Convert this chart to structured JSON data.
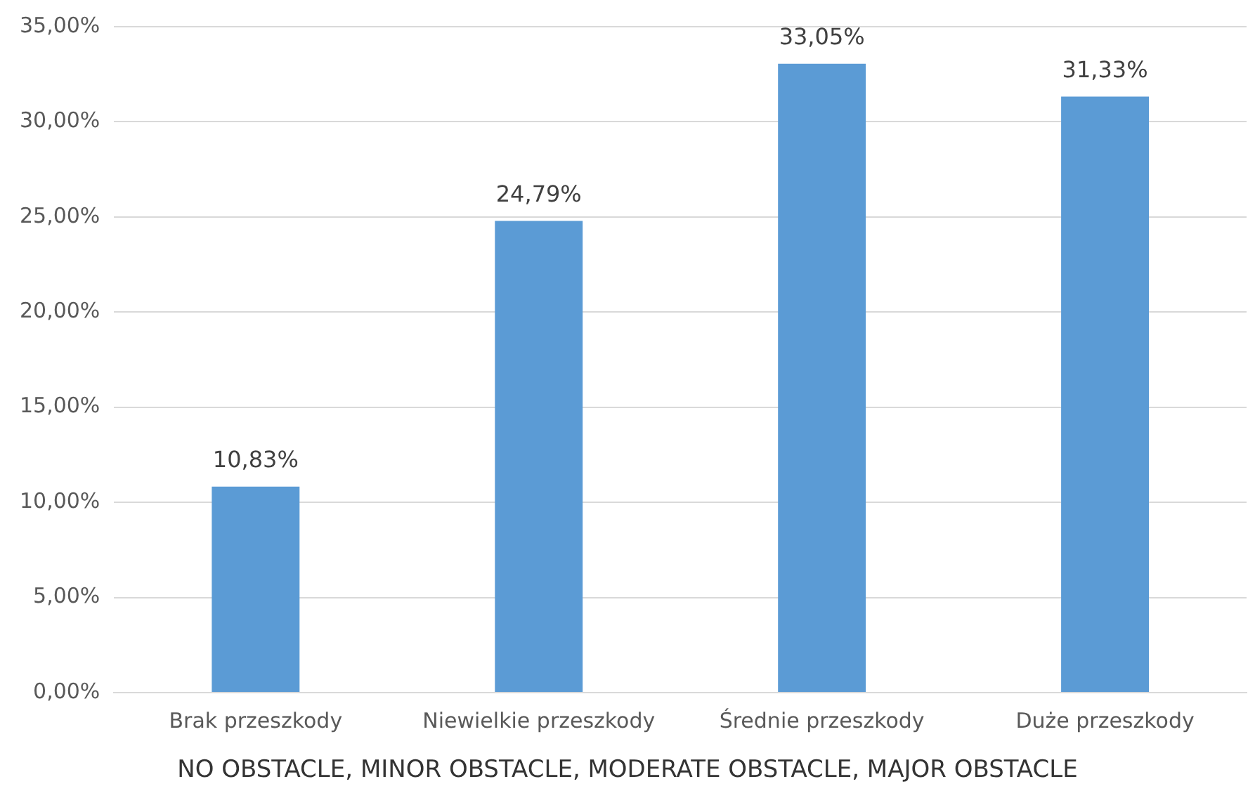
{
  "chart_data": {
    "type": "bar",
    "categories": [
      "Brak przeszkody",
      "Niewielkie przeszkody",
      "Średnie przeszkody",
      "Duże przeszkody"
    ],
    "values": [
      10.83,
      24.79,
      33.05,
      31.33
    ],
    "color": "#5b9bd5",
    "value_labels": [
      "10,83%",
      "24,79%",
      "33,05%",
      "31,33%"
    ],
    "ylim": [
      0,
      35
    ],
    "yticks": [
      {
        "value": 0,
        "label": "0,00%"
      },
      {
        "value": 5,
        "label": "5,00%"
      },
      {
        "value": 10,
        "label": "10,00%"
      },
      {
        "value": 15,
        "label": "15,00%"
      },
      {
        "value": 20,
        "label": "20,00%"
      },
      {
        "value": 25,
        "label": "25,00%"
      },
      {
        "value": 30,
        "label": "30,00%"
      },
      {
        "value": 35,
        "label": "35,00%"
      }
    ],
    "grid": "y",
    "legend": false,
    "annotations": [
      "NO OBSTACLE, MINOR OBSTACLE, MODERATE OBSTACLE, MAJOR OBSTACLE"
    ]
  }
}
